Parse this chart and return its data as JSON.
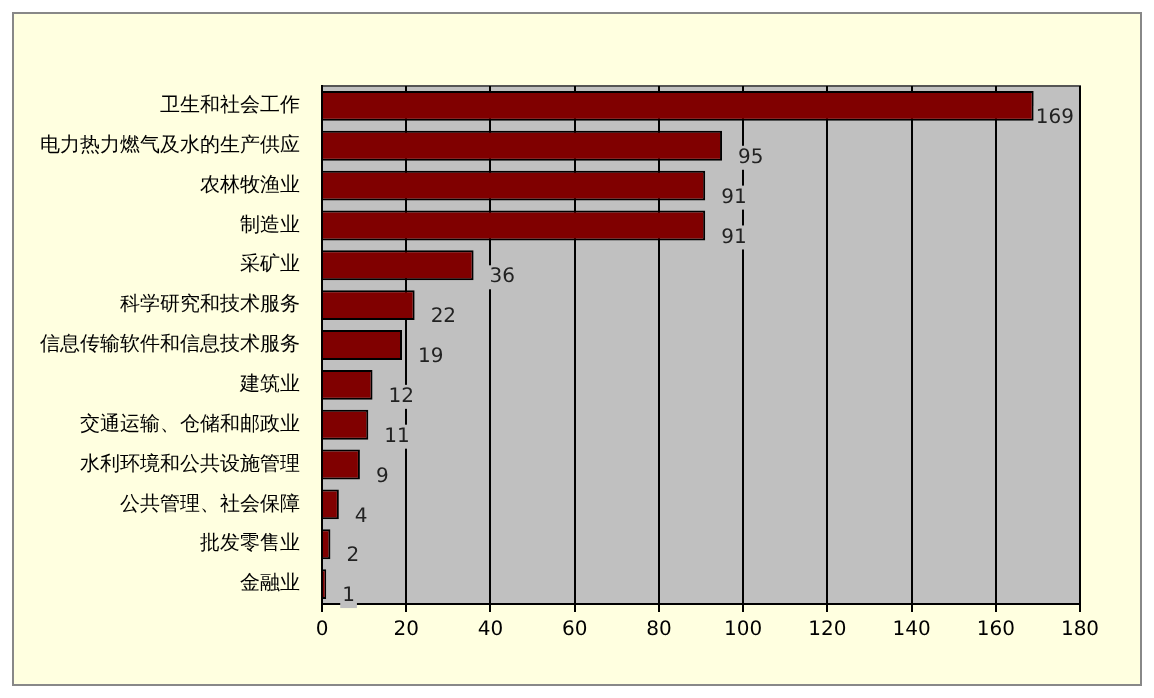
{
  "chart_data": {
    "type": "bar",
    "orientation": "horizontal",
    "categories": [
      "卫生和社会工作",
      "电力热力燃气及水的生产供应",
      "农林牧渔业",
      "制造业",
      "采矿业",
      "科学研究和技术服务",
      "信息传输软件和信息技术服务",
      "建筑业",
      "交通运输、仓储和邮政业",
      "水利环境和公共设施管理",
      "公共管理、社会保障",
      "批发零售业",
      "金融业"
    ],
    "values": [
      169,
      95,
      91,
      91,
      36,
      22,
      19,
      12,
      11,
      9,
      4,
      2,
      1
    ],
    "color": "#800000",
    "xlim": [
      0,
      180
    ],
    "xticks": [
      0,
      20,
      40,
      60,
      80,
      100,
      120,
      140,
      160,
      180
    ],
    "grid": "x",
    "data_labels": true,
    "legend": false
  }
}
